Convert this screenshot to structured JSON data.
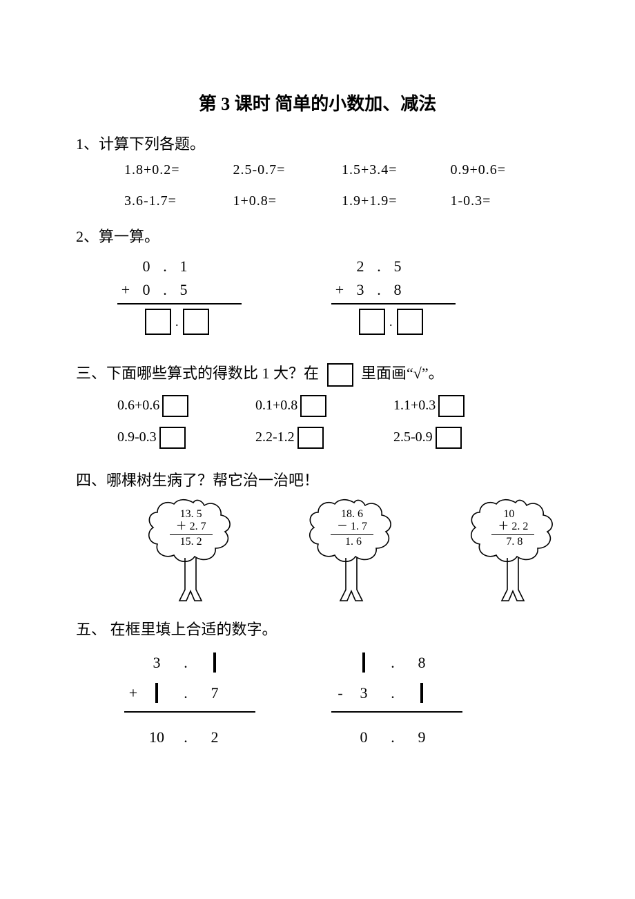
{
  "title": "第 3 课时   简单的小数加、减法",
  "q1": {
    "head": "1、计算下列各题。",
    "rows": [
      [
        "1.8+0.2=",
        "2.5-0.7=",
        "1.5+3.4=",
        "0.9+0.6="
      ],
      [
        "3.6-1.7=",
        "1+0.8=",
        "1.9+1.9=",
        "1-0.3="
      ]
    ]
  },
  "q2": {
    "head": "2、算一算。",
    "problems": [
      {
        "top": [
          "",
          "0",
          ".",
          "1"
        ],
        "bot": [
          "+",
          "0",
          ".",
          "5"
        ]
      },
      {
        "top": [
          "",
          "2",
          ".",
          "5"
        ],
        "bot": [
          "+",
          "3",
          ".",
          "8"
        ]
      }
    ]
  },
  "q3": {
    "head_a": "三、下面哪些算式的得数比 1 大？在",
    "head_b": "里面画“√”。",
    "rows": [
      [
        "0.6+0.6",
        "0.1+0.8",
        "1.1+0.3"
      ],
      [
        "0.9-0.3",
        "2.2-1.2",
        "2.5-0.9"
      ]
    ]
  },
  "q4": {
    "head": "四、哪棵树生病了？帮它治一治吧！",
    "trees": [
      {
        "a": "13. 5",
        "op": "＋",
        "b": " 2. 7",
        "r": "15. 2"
      },
      {
        "a": "18. 6",
        "op": "－",
        "b": " 1. 7",
        "r": " 1. 6"
      },
      {
        "a": "10   ",
        "op": "＋",
        "b": " 2. 2",
        "r": " 7. 8"
      }
    ]
  },
  "q5": {
    "head": "五、 在框里填上合适的数字。",
    "left": {
      "r1": [
        "",
        "3",
        ".",
        "BOX"
      ],
      "r2": [
        "+",
        "BOX",
        ".",
        "7"
      ],
      "res": [
        "",
        "10",
        ".",
        "2"
      ]
    },
    "right": {
      "r1": [
        "",
        "BOX",
        ".",
        "8"
      ],
      "r2": [
        "-",
        "3",
        ".",
        "BOX"
      ],
      "res": [
        "",
        "0",
        ".",
        "9"
      ]
    }
  }
}
